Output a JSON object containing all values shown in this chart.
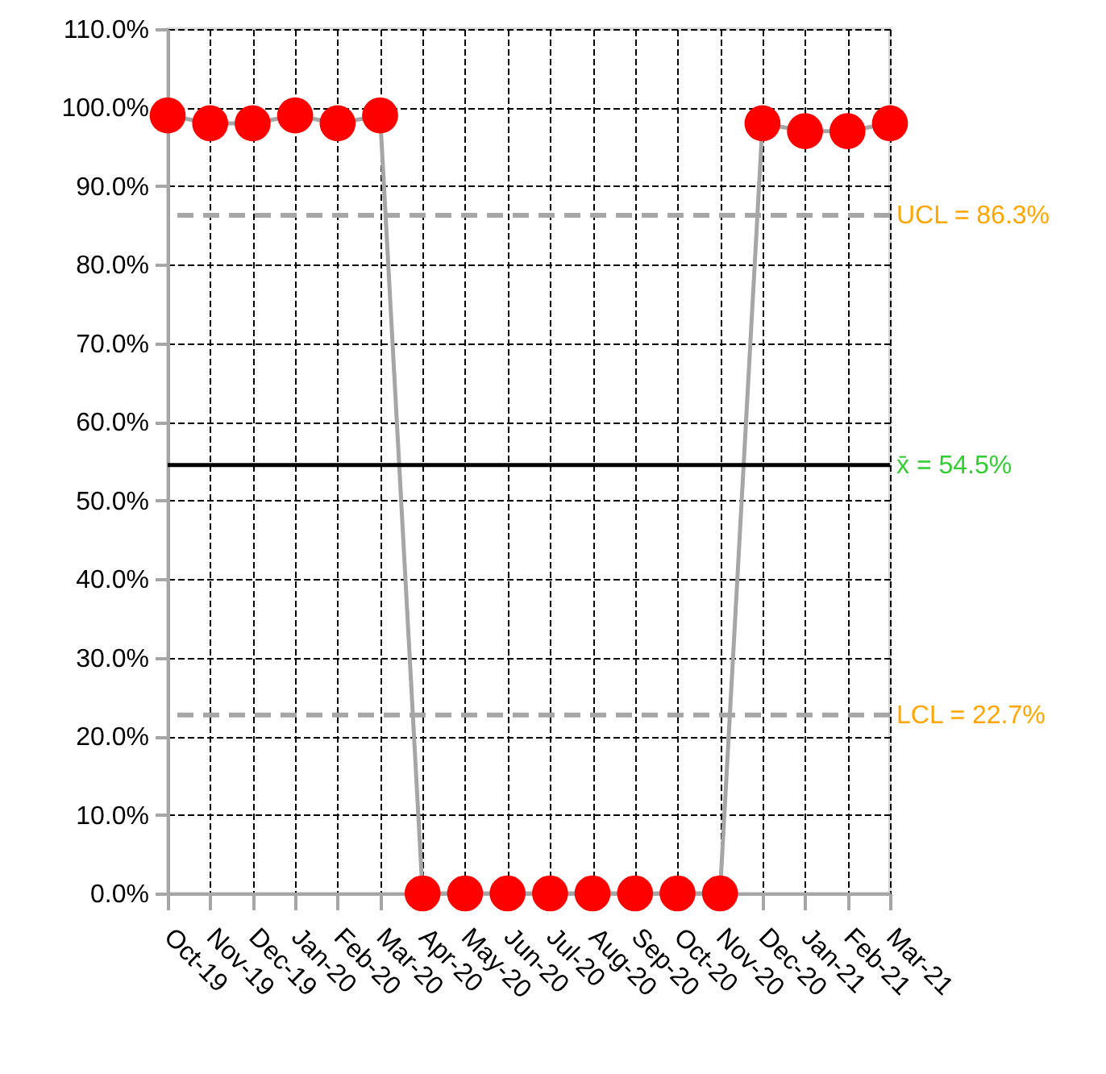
{
  "chart_data": {
    "type": "line",
    "categories": [
      "Oct-19",
      "Nov-19",
      "Dec-19",
      "Jan-20",
      "Feb-20",
      "Mar-20",
      "Apr-20",
      "May-20",
      "Jun-20",
      "Jul-20",
      "Aug-20",
      "Sep-20",
      "Oct-20",
      "Nov-20",
      "Dec-20",
      "Jan-21",
      "Feb-21",
      "Mar-21"
    ],
    "series": [
      {
        "color": "#ff0000",
        "values": [
          99,
          98,
          98,
          99,
          98,
          99,
          0,
          0,
          0,
          0,
          0,
          0,
          0,
          0,
          98,
          97,
          97,
          98
        ]
      }
    ],
    "ylim": [
      0,
      110
    ],
    "yticks": [
      {
        "value": 0,
        "label": "0.0%"
      },
      {
        "value": 10,
        "label": "10.0%"
      },
      {
        "value": 20,
        "label": "20.0%"
      },
      {
        "value": 30,
        "label": "30.0%"
      },
      {
        "value": 40,
        "label": "40.0%"
      },
      {
        "value": 50,
        "label": "50.0%"
      },
      {
        "value": 60,
        "label": "60.0%"
      },
      {
        "value": 70,
        "label": "70.0%"
      },
      {
        "value": 80,
        "label": "80.0%"
      },
      {
        "value": 90,
        "label": "90.0%"
      },
      {
        "value": 100,
        "label": "100.0%"
      },
      {
        "value": 110,
        "label": "110.0%"
      }
    ],
    "ref_lines": [
      {
        "axis": "y",
        "value": 86.3,
        "label": "UCL = 86.3%",
        "color": "#a6a6a6",
        "line_style": "dashed"
      },
      {
        "axis": "y",
        "value": 54.5,
        "label": "x̄ = 54.5%",
        "color": "#000000",
        "line_style": "solid"
      },
      {
        "axis": "y",
        "value": 22.7,
        "label": "LCL = 22.7%",
        "color": "#a6a6a6",
        "line_style": "dashed"
      }
    ],
    "grid": true,
    "marker": "circle",
    "line_style": "solid"
  }
}
